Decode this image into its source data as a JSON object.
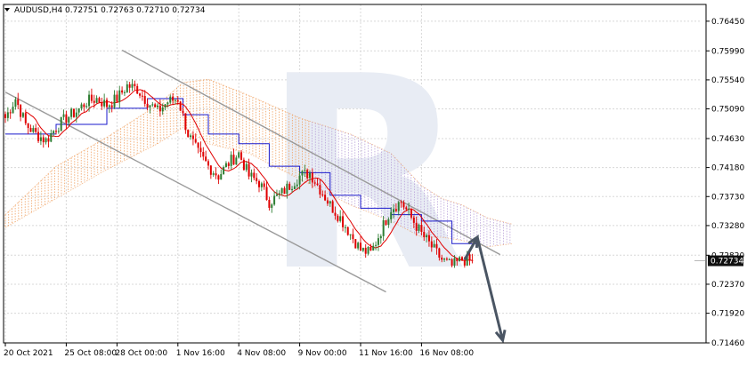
{
  "header": {
    "symbol": "AUDUSD,H4",
    "ohlc": "0.72751 0.72763 0.72710 0.72734"
  },
  "watermark": "R",
  "colors": {
    "background": "#ffffff",
    "grid": "#d8d8d8",
    "bull_candle": "#2e7d32",
    "bear_candle": "#e00000",
    "tenkan": "#e00000",
    "kijun": "#1a1acc",
    "cloud_bull": "#f0a060",
    "cloud_bear": "#b8a0d8",
    "channel": "#9a9a9a",
    "forecast_arrow": "#4a5563",
    "price_badge": "#101010",
    "watermark": "#e8ecf4"
  },
  "chart_data": {
    "type": "candlestick",
    "symbol": "AUDUSD",
    "timeframe": "H4",
    "grid": true,
    "ylim": [
      0.7146,
      0.7671
    ],
    "y_ticks": [
      "0.76450",
      "0.75990",
      "0.75540",
      "0.75090",
      "0.74630",
      "0.74180",
      "0.73730",
      "0.73280",
      "0.72820",
      "0.72370",
      "0.71920",
      "0.71460"
    ],
    "x_ticks": [
      {
        "label": "20 Oct 2021",
        "index": 0
      },
      {
        "label": "25 Oct 08:00",
        "index": 24
      },
      {
        "label": "28 Oct 00:00",
        "index": 44
      },
      {
        "label": "1 Nov 16:00",
        "index": 68
      },
      {
        "label": "4 Nov 08:00",
        "index": 92
      },
      {
        "label": "9 Nov 00:00",
        "index": 116
      },
      {
        "label": "11 Nov 16:00",
        "index": 140
      },
      {
        "label": "16 Nov 08:00",
        "index": 164
      }
    ],
    "current_price": "0.72734",
    "current_price_value": 0.72734,
    "ohlc_key_points": [
      [
        0,
        0.7495
      ],
      [
        4,
        0.7525
      ],
      [
        8,
        0.7485
      ],
      [
        12,
        0.747
      ],
      [
        16,
        0.746
      ],
      [
        20,
        0.748
      ],
      [
        24,
        0.7495
      ],
      [
        28,
        0.7505
      ],
      [
        32,
        0.752
      ],
      [
        36,
        0.7525
      ],
      [
        40,
        0.7515
      ],
      [
        44,
        0.7525
      ],
      [
        48,
        0.7545
      ],
      [
        52,
        0.754
      ],
      [
        56,
        0.752
      ],
      [
        60,
        0.7505
      ],
      [
        64,
        0.752
      ],
      [
        68,
        0.7525
      ],
      [
        72,
        0.747
      ],
      [
        76,
        0.744
      ],
      [
        80,
        0.742
      ],
      [
        84,
        0.7405
      ],
      [
        88,
        0.7425
      ],
      [
        92,
        0.744
      ],
      [
        96,
        0.7405
      ],
      [
        100,
        0.7395
      ],
      [
        104,
        0.7365
      ],
      [
        108,
        0.7375
      ],
      [
        112,
        0.739
      ],
      [
        116,
        0.7405
      ],
      [
        120,
        0.741
      ],
      [
        124,
        0.7385
      ],
      [
        128,
        0.736
      ],
      [
        132,
        0.734
      ],
      [
        136,
        0.7315
      ],
      [
        140,
        0.729
      ],
      [
        144,
        0.7285
      ],
      [
        148,
        0.732
      ],
      [
        152,
        0.7355
      ],
      [
        156,
        0.7365
      ],
      [
        160,
        0.734
      ],
      [
        164,
        0.7315
      ],
      [
        168,
        0.7295
      ],
      [
        172,
        0.7275
      ],
      [
        176,
        0.7265
      ],
      [
        180,
        0.7275
      ],
      [
        184,
        0.7273
      ]
    ],
    "indicator": "Ichimoku Kinko Hyo",
    "kijun_points": [
      [
        0,
        0.747
      ],
      [
        20,
        0.7485
      ],
      [
        40,
        0.751
      ],
      [
        56,
        0.7525
      ],
      [
        70,
        0.75
      ],
      [
        80,
        0.747
      ],
      [
        92,
        0.7455
      ],
      [
        104,
        0.742
      ],
      [
        116,
        0.741
      ],
      [
        128,
        0.7375
      ],
      [
        140,
        0.7355
      ],
      [
        152,
        0.7345
      ],
      [
        164,
        0.7335
      ],
      [
        176,
        0.73
      ],
      [
        186,
        0.73
      ]
    ],
    "cloud": {
      "upper": [
        [
          0,
          0.7345
        ],
        [
          20,
          0.742
        ],
        [
          40,
          0.7465
        ],
        [
          60,
          0.7515
        ],
        [
          70,
          0.755
        ],
        [
          80,
          0.7555
        ],
        [
          96,
          0.753
        ],
        [
          116,
          0.7495
        ],
        [
          136,
          0.747
        ],
        [
          152,
          0.744
        ],
        [
          164,
          0.739
        ],
        [
          172,
          0.737
        ],
        [
          180,
          0.736
        ],
        [
          190,
          0.734
        ],
        [
          200,
          0.733
        ]
      ],
      "lower": [
        [
          0,
          0.7325
        ],
        [
          20,
          0.737
        ],
        [
          40,
          0.7415
        ],
        [
          60,
          0.7455
        ],
        [
          70,
          0.748
        ],
        [
          80,
          0.7455
        ],
        [
          96,
          0.744
        ],
        [
          116,
          0.74
        ],
        [
          136,
          0.736
        ],
        [
          152,
          0.7335
        ],
        [
          164,
          0.731
        ],
        [
          172,
          0.731
        ],
        [
          180,
          0.7305
        ],
        [
          190,
          0.7295
        ],
        [
          200,
          0.73
        ]
      ],
      "bear_from": 120
    },
    "channel": {
      "upper": [
        [
          46,
          0.76
        ],
        [
          195,
          0.7283
        ]
      ],
      "lower": [
        [
          0,
          0.7535
        ],
        [
          150,
          0.7225
        ]
      ]
    },
    "forecast": [
      [
        181,
        0.7275
      ],
      [
        186,
        0.731
      ],
      [
        196,
        0.715
      ]
    ]
  }
}
